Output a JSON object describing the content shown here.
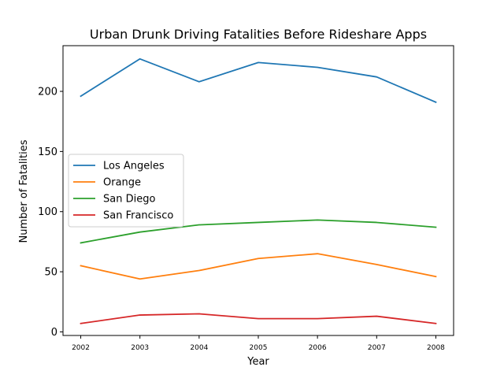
{
  "chart_data": {
    "type": "line",
    "title": "Urban Drunk Driving Fatalities Before Rideshare Apps",
    "xlabel": "Year",
    "ylabel": "Number of Fatalities",
    "x": [
      2002,
      2003,
      2004,
      2005,
      2006,
      2007,
      2008
    ],
    "xtick_labels": [
      "2002",
      "2003",
      "2004",
      "2005",
      "2006",
      "2007",
      "2008"
    ],
    "yticks": [
      0,
      50,
      100,
      150,
      200
    ],
    "ytick_labels": [
      "0",
      "50",
      "100",
      "150",
      "200"
    ],
    "xlim": [
      2001.7,
      2008.3
    ],
    "ylim": [
      -3,
      238
    ],
    "grid": false,
    "legend_position": "center-left",
    "series": [
      {
        "name": "Los Angeles",
        "color": "#1f77b4",
        "values": [
          196,
          227,
          208,
          224,
          220,
          212,
          191
        ]
      },
      {
        "name": "Orange",
        "color": "#ff7f0e",
        "values": [
          55,
          44,
          51,
          61,
          65,
          56,
          46
        ]
      },
      {
        "name": "San Diego",
        "color": "#2ca02c",
        "values": [
          74,
          83,
          89,
          91,
          93,
          91,
          87
        ]
      },
      {
        "name": "San Francisco",
        "color": "#d62728",
        "values": [
          7,
          14,
          15,
          11,
          11,
          13,
          7
        ]
      }
    ]
  }
}
